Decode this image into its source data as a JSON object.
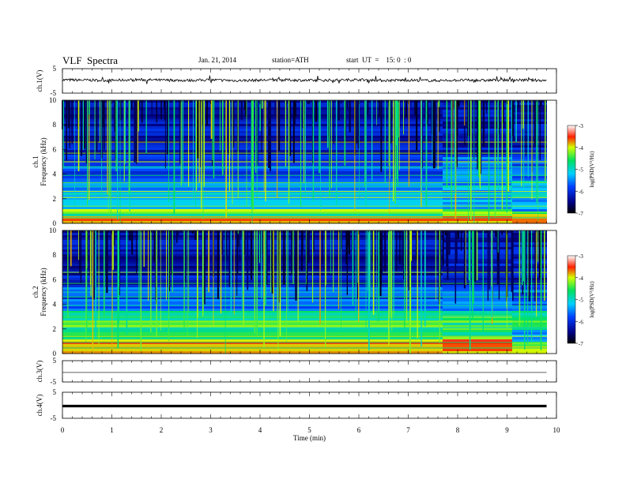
{
  "header": {
    "title": "VLF  Spectra",
    "date": "Jan. 21, 2014",
    "station": "station=ATH",
    "start": "start  UT  =    15: 0  : 0"
  },
  "chart_data": [
    {
      "type": "line",
      "panel": "ch1",
      "ylabel": "ch.1(V)",
      "ylim": [
        -5,
        5
      ],
      "yticks": [
        "5",
        "-5"
      ],
      "x": [
        0,
        0.5,
        1,
        1.5,
        2,
        2.5,
        3,
        3.5,
        4,
        4.5,
        5,
        5.5,
        6,
        6.5,
        7,
        7.5,
        8,
        8.5,
        9,
        9.5,
        9.8
      ],
      "values": [
        0.4,
        0.3,
        0.2,
        0.5,
        0.3,
        0.2,
        0.4,
        0.1,
        0.3,
        0.4,
        0.2,
        0.3,
        0.5,
        0.2,
        0.3,
        0.1,
        0.3,
        0.2,
        0.4,
        0.3,
        0.2
      ]
    },
    {
      "type": "heatmap",
      "panel": "ch1-spectrogram",
      "ylabel": "ch.1  Frequency  (kHz)",
      "ylim": [
        0,
        10
      ],
      "yticks": [
        "0",
        "2",
        "4",
        "6",
        "8",
        "10"
      ],
      "colorbar": {
        "label": "log(PSD(V²/Hz)",
        "range": [
          -7,
          -3
        ],
        "ticks": [
          "-3",
          "-4",
          "-5",
          "-6",
          "-7"
        ]
      }
    },
    {
      "type": "heatmap",
      "panel": "ch2-spectrogram",
      "ylabel": "ch.2  Frequency  (kHz)",
      "ylim": [
        0,
        10
      ],
      "yticks": [
        "0",
        "2",
        "4",
        "6",
        "8",
        "10"
      ],
      "colorbar": {
        "label": "log(PSD(V²/Hz)",
        "range": [
          -7,
          -3
        ],
        "ticks": [
          "-3",
          "-4",
          "-5",
          "-6",
          "-7"
        ]
      }
    },
    {
      "type": "line",
      "panel": "ch3",
      "ylabel": "ch.3(V)",
      "ylim": [
        -5,
        5
      ],
      "yticks": [
        "5",
        "-5"
      ],
      "x": [
        0,
        9.8
      ],
      "values": [
        -0.5,
        -0.5
      ]
    },
    {
      "type": "line",
      "panel": "ch4",
      "ylabel": "ch.4(V)",
      "ylim": [
        -5,
        5
      ],
      "yticks": [
        "5",
        "-5"
      ],
      "x": [
        0,
        9.8
      ],
      "values": [
        -0.3,
        -0.3
      ]
    }
  ],
  "xaxis": {
    "label": "Time  (min)",
    "xlim": [
      0,
      10
    ],
    "ticks": [
      "0",
      "1",
      "2",
      "3",
      "4",
      "5",
      "6",
      "7",
      "8",
      "9",
      "10"
    ]
  },
  "colors": {
    "spectrum_low": "#00004c",
    "spectrum_mid": "#00d2ff",
    "spectrum_high": "#ff2020",
    "line": "#000000"
  }
}
